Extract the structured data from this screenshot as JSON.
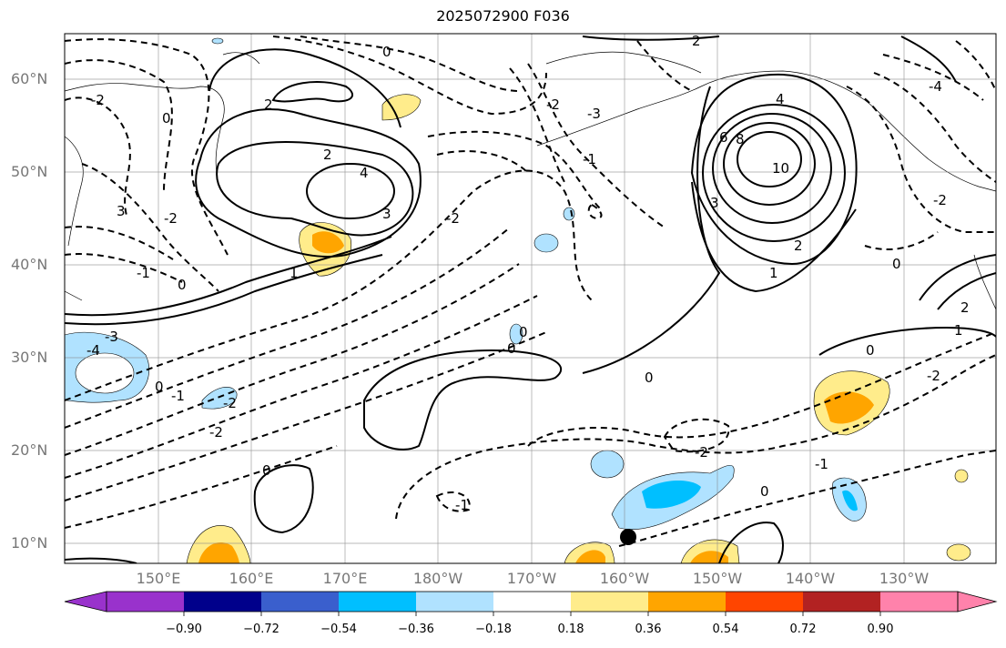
{
  "title": "2025072900 F036",
  "lat_labels": [
    "60°N",
    "50°N",
    "40°N",
    "30°N",
    "20°N",
    "10°N"
  ],
  "lon_labels": [
    "150°E",
    "160°E",
    "170°E",
    "180°W",
    "170°W",
    "160°W",
    "150°W",
    "140°W",
    "130°W"
  ],
  "colorbar": {
    "ticks": [
      "−0.90",
      "−0.72",
      "−0.54",
      "−0.36",
      "−0.18",
      "0.18",
      "0.36",
      "0.54",
      "0.72",
      "0.90"
    ],
    "colors": [
      "#9932cc",
      "#00008b",
      "#3a5fcd",
      "#00bfff",
      "#b0e2ff",
      "#ffffff",
      "#ffec8b",
      "#ffa500",
      "#ff4500",
      "#b22222",
      "#ff82ab"
    ]
  },
  "contour_labels": [
    "0",
    "2",
    "-2",
    "1",
    "-1",
    "3",
    "-3",
    "4",
    "-4",
    "6",
    "8",
    "10"
  ],
  "marker": {
    "lat": 10.8,
    "lon": -158.5,
    "label": ""
  }
}
